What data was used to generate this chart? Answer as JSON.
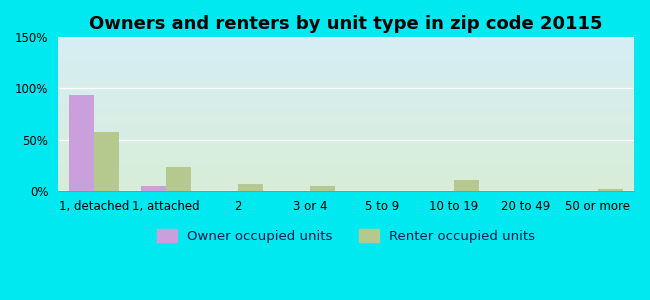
{
  "title": "Owners and renters by unit type in zip code 20115",
  "categories": [
    "1, detached",
    "1, attached",
    "2",
    "3 or 4",
    "5 to 9",
    "10 to 19",
    "20 to 49",
    "50 or more"
  ],
  "owner_values": [
    94,
    5,
    0,
    0,
    0,
    0,
    0,
    0
  ],
  "renter_values": [
    57,
    23,
    7,
    5,
    0,
    10,
    0,
    2
  ],
  "owner_color": "#c9a0dc",
  "renter_color": "#b5c98e",
  "background_outer": "#00e8f0",
  "gradient_top": "#d6eef5",
  "gradient_bottom": "#d8edd8",
  "ylim": [
    0,
    150
  ],
  "yticks": [
    0,
    50,
    100,
    150
  ],
  "ytick_labels": [
    "0%",
    "50%",
    "100%",
    "150%"
  ],
  "bar_width": 0.35,
  "legend_owner": "Owner occupied units",
  "legend_renter": "Renter occupied units",
  "title_fontsize": 13,
  "tick_fontsize": 8.5,
  "legend_fontsize": 9.5
}
